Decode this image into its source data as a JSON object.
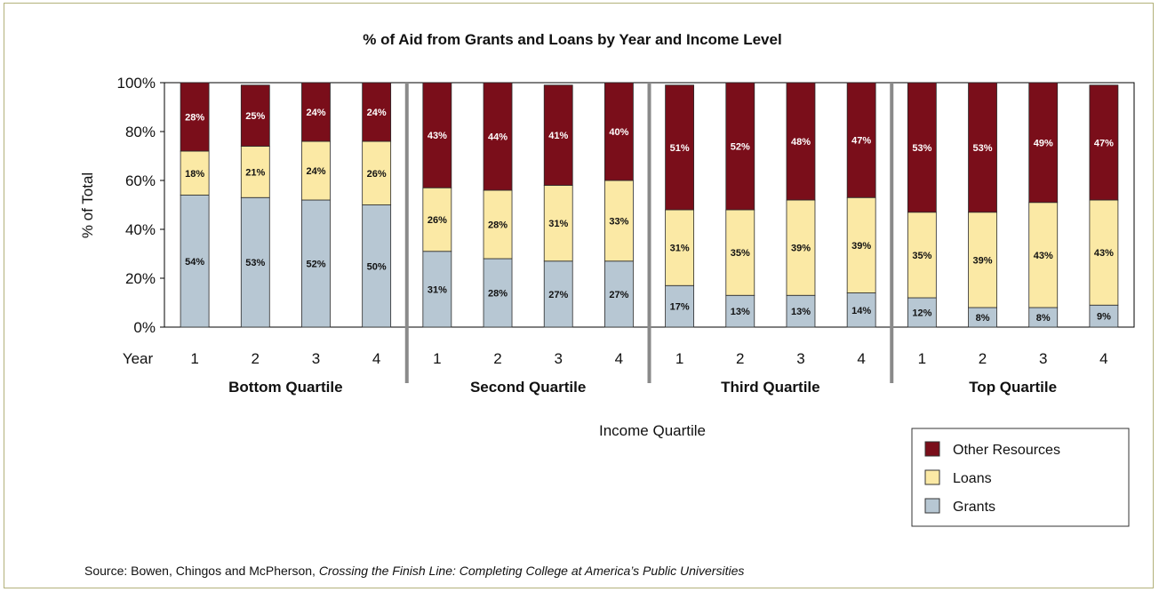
{
  "chart_data": {
    "type": "bar",
    "stacked": true,
    "title": "% of Aid from Grants and Loans by Year and Income Level",
    "ylabel": "% of Total",
    "xlabel": "Income Quartile",
    "ylim": [
      0,
      100
    ],
    "y_ticks": [
      "0%",
      "20%",
      "40%",
      "60%",
      "80%",
      "100%"
    ],
    "x_axis_prefix": "Year",
    "groups": [
      "Bottom Quartile",
      "Second Quartile",
      "Third Quartile",
      "Top Quartile"
    ],
    "years": [
      "1",
      "2",
      "3",
      "4"
    ],
    "series": [
      {
        "name": "Grants",
        "color": "#b7c7d3",
        "values": [
          54,
          53,
          52,
          50,
          31,
          28,
          27,
          27,
          17,
          13,
          13,
          14,
          12,
          8,
          8,
          9
        ],
        "labels": [
          "54%",
          "53%",
          "52%",
          "50%",
          "31%",
          "28%",
          "27%",
          "27%",
          "17%",
          "13%",
          "13%",
          "14%",
          "12%",
          "8%",
          "8%",
          "9%"
        ]
      },
      {
        "name": "Loans",
        "color": "#fbe9a5",
        "values": [
          18,
          21,
          24,
          26,
          26,
          28,
          31,
          33,
          31,
          35,
          39,
          39,
          35,
          39,
          43,
          43
        ],
        "labels": [
          "18%",
          "21%",
          "24%",
          "26%",
          "26%",
          "28%",
          "31%",
          "33%",
          "31%",
          "35%",
          "39%",
          "39%",
          "35%",
          "39%",
          "43%",
          "43%"
        ]
      },
      {
        "name": "Other Resources",
        "color": "#7a0e1a",
        "values": [
          28,
          25,
          24,
          24,
          43,
          44,
          41,
          40,
          51,
          52,
          48,
          47,
          53,
          53,
          49,
          47
        ],
        "labels": [
          "28%",
          "25%",
          "24%",
          "24%",
          "43%",
          "44%",
          "41%",
          "40%",
          "51%",
          "52%",
          "48%",
          "47%",
          "53%",
          "53%",
          "49%",
          "47%"
        ]
      }
    ],
    "legend": {
      "position": "bottom-right",
      "items": [
        "Other Resources",
        "Loans",
        "Grants"
      ]
    },
    "grid": false
  },
  "source": {
    "prefix": "Source: Bowen, Chingos and McPherson, ",
    "title": "Crossing the Finish Line: Completing College at America’s Public Universities"
  }
}
